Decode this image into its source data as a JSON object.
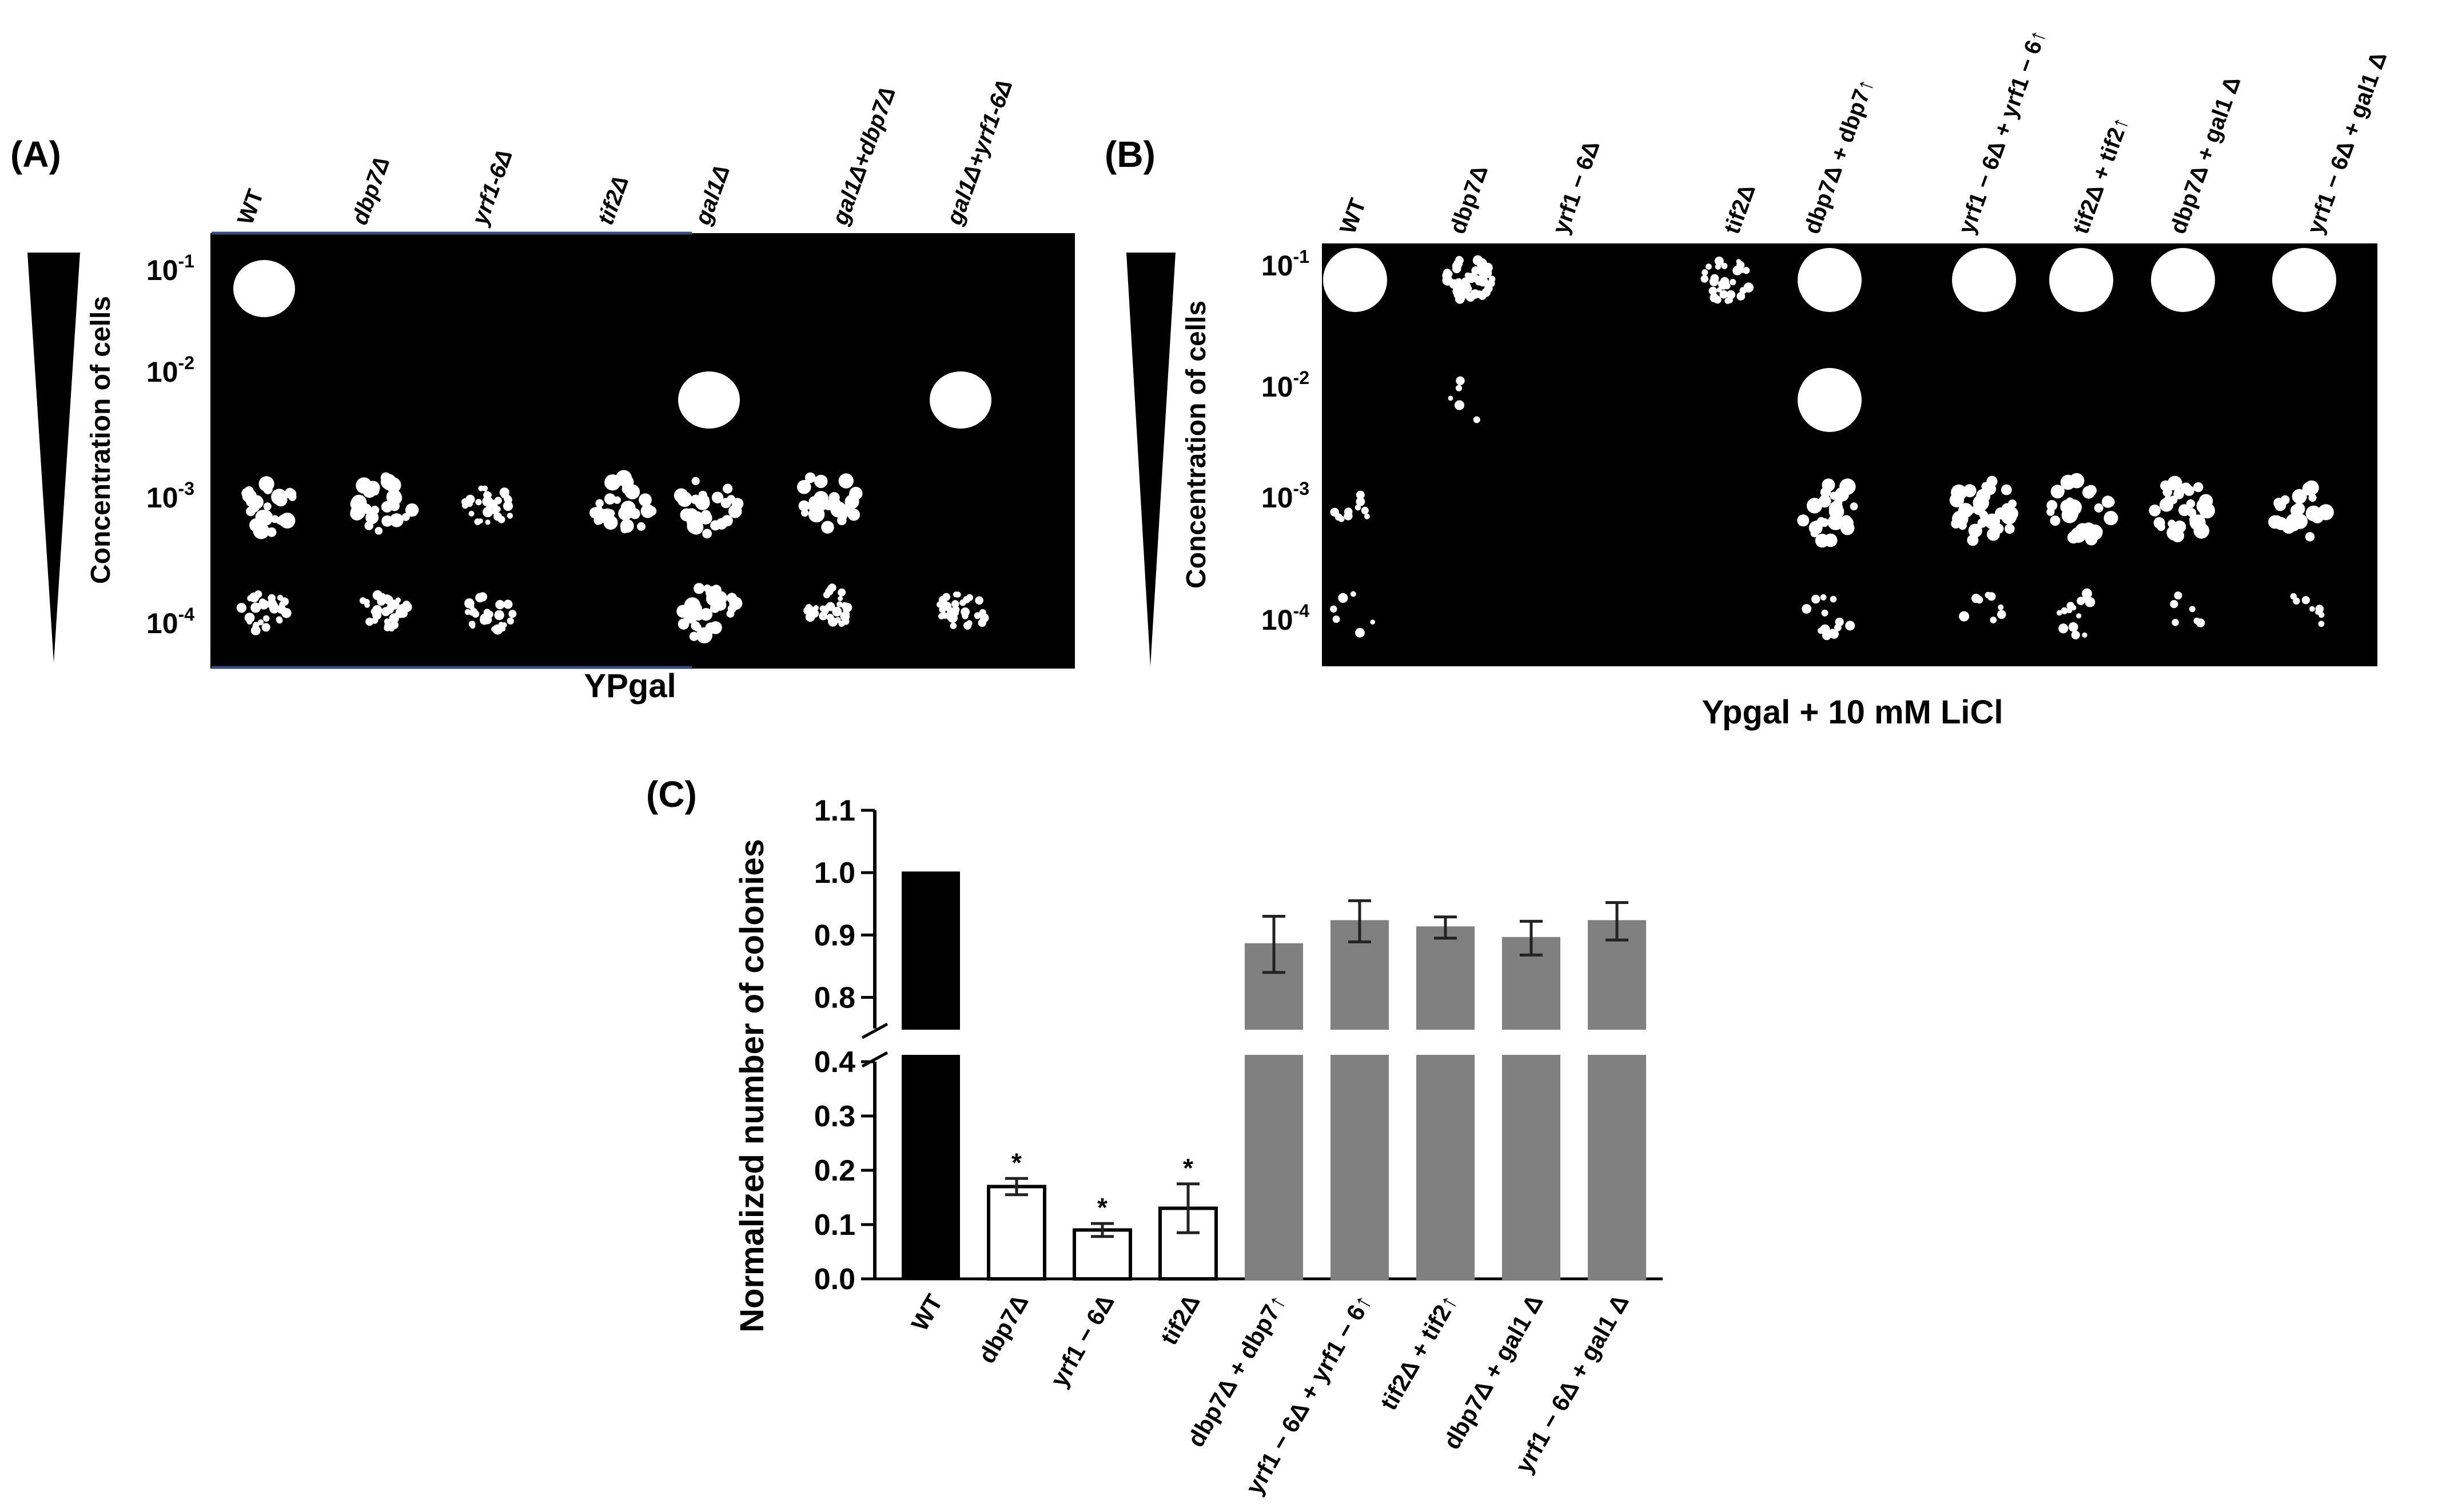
{
  "panel_a": {
    "label": "(A)",
    "strains": [
      "WT",
      "dbp7Δ",
      "yrf1-6Δ",
      "tif2Δ",
      "gal1Δ",
      "gal1Δ+dbp7Δ",
      "gal1Δ+yrf1-6Δ"
    ],
    "dilutions": [
      {
        "base": "10",
        "exp": "-1"
      },
      {
        "base": "10",
        "exp": "-2"
      },
      {
        "base": "10",
        "exp": "-3"
      },
      {
        "base": "10",
        "exp": "-4"
      }
    ],
    "gradient_label": "Concentration of cells",
    "medium": "YPgal"
  },
  "panel_b": {
    "label": "(B)",
    "strains": [
      "WT",
      "dbp7Δ",
      "yrf1 − 6Δ",
      "tif2Δ",
      "dbp7Δ + dbp7↑",
      "yrf1 − 6Δ + yrf1 − 6↑",
      "tif2Δ + tif2↑",
      "dbp7Δ + gal1 Δ",
      "yrf1 − 6Δ + gal1 Δ"
    ],
    "dilutions": [
      {
        "base": "10",
        "exp": "-1"
      },
      {
        "base": "10",
        "exp": "-2"
      },
      {
        "base": "10",
        "exp": "-3"
      },
      {
        "base": "10",
        "exp": "-4"
      }
    ],
    "gradient_label": "Concentration of cells",
    "medium": "Ypgal + 10 mM LiCl"
  },
  "panel_c": {
    "label": "(C)"
  },
  "chart_data": {
    "type": "bar",
    "categories": [
      "WT",
      "dbp7Δ",
      "yrf1 − 6Δ",
      "tif2Δ",
      "dbp7Δ + dbp7↑",
      "yrf1 − 6Δ + yrf1 − 6↑",
      "tif2Δ + tif2↑",
      "dbp7Δ + gal1 Δ",
      "yrf1 − 6Δ + gal1 Δ"
    ],
    "values": [
      1.0,
      0.17,
      0.09,
      0.13,
      0.885,
      0.922,
      0.912,
      0.895,
      0.922
    ],
    "errors": [
      0,
      0.015,
      0.012,
      0.045,
      0.045,
      0.033,
      0.017,
      0.027,
      0.03
    ],
    "significance": [
      "",
      "*",
      "*",
      "*",
      "",
      "",
      "",
      "",
      ""
    ],
    "fill": [
      "black",
      "white",
      "white",
      "white",
      "gray",
      "gray",
      "gray",
      "gray",
      "gray"
    ],
    "colors": {
      "black": "#000000",
      "white": "#ffffff",
      "gray": "#808080"
    },
    "ylabel": "Normalized number of colonies",
    "y_segments": [
      {
        "range": [
          0.0,
          0.4
        ],
        "ticks": [
          "0.0",
          "0.1",
          "0.2",
          "0.3",
          "0.4"
        ]
      },
      {
        "range": [
          0.75,
          1.1
        ],
        "ticks": [
          "0.8",
          "0.9",
          "1.0",
          "1.1"
        ]
      }
    ],
    "axis_break": [
      0.4,
      0.75
    ]
  }
}
